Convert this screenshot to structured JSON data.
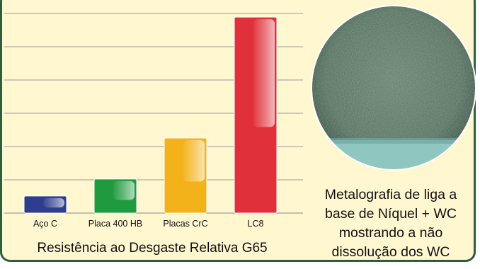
{
  "chart_data": {
    "type": "bar",
    "title": "Resistência ao Desgaste Relativa G65",
    "categories": [
      "Aço C",
      "Placa 400 HB",
      "Placas CrC",
      "LC8"
    ],
    "values": [
      1,
      2,
      4.4,
      11.5
    ],
    "ylim": [
      0,
      12.5
    ],
    "grid": true,
    "colors": [
      "#2f3d8f",
      "#1f9a3e",
      "#f4b21a",
      "#e0313a"
    ]
  },
  "photo": {
    "caption_lines": [
      "Metalografia de liga a",
      "base de Níquel + WC",
      "mostrando a não",
      "dissolução dos WC"
    ]
  }
}
